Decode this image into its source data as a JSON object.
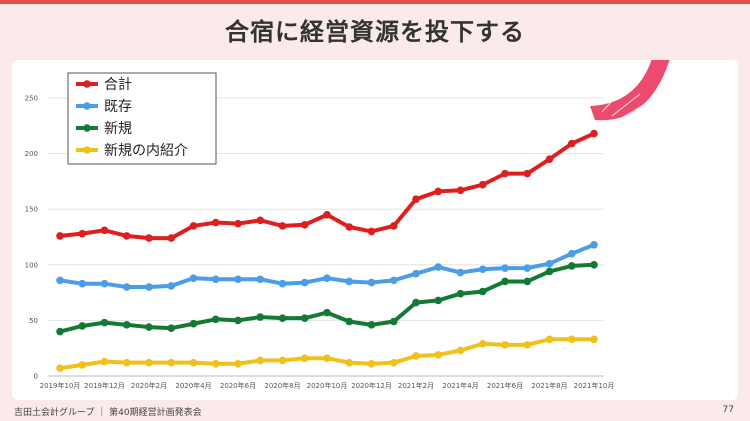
{
  "slide": {
    "title": "合宿に経営資源を投下する",
    "footer_text": "吉田土会計グループ ｜ 第40期経営計画発表会",
    "page_number": "77"
  },
  "colors": {
    "top_bar": "#e05050",
    "arrow": "#ec4a6e",
    "background": "#fbeaea"
  },
  "chart_data": {
    "type": "line",
    "x": [
      "2019年10月",
      "2019年11月",
      "2019年12月",
      "2020年1月",
      "2020年2月",
      "2020年3月",
      "2020年4月",
      "2020年5月",
      "2020年6月",
      "2020年7月",
      "2020年8月",
      "2020年9月",
      "2020年10月",
      "2020年11月",
      "2020年12月",
      "2021年1月",
      "2021年2月",
      "2021年3月",
      "2021年4月",
      "2021年5月",
      "2021年6月",
      "2021年7月",
      "2021年8月",
      "2021年9月",
      "2021年10月"
    ],
    "x_tick_labels": [
      "2019年10月",
      "",
      "2019年12月",
      "",
      "2020年2月",
      "",
      "2020年4月",
      "",
      "2020年6月",
      "",
      "2020年8月",
      "",
      "2020年10月",
      "",
      "2020年12月",
      "",
      "2021年2月",
      "",
      "2021年4月",
      "",
      "2021年6月",
      "",
      "2021年8月",
      "",
      "2021年10月"
    ],
    "ylim": [
      0,
      250
    ],
    "y_ticks": [
      0,
      50,
      100,
      150,
      200,
      250
    ],
    "grid": true,
    "legend_position": "top-left",
    "series": [
      {
        "name": "合計",
        "color": "#dd1f1f",
        "values": [
          126,
          128,
          131,
          126,
          124,
          124,
          135,
          138,
          137,
          140,
          135,
          136,
          145,
          134,
          130,
          135,
          159,
          166,
          167,
          172,
          182,
          182,
          195,
          209,
          218
        ]
      },
      {
        "name": "既存",
        "color": "#4a9de6",
        "values": [
          86,
          83,
          83,
          80,
          80,
          81,
          88,
          87,
          87,
          87,
          83,
          84,
          88,
          85,
          84,
          86,
          92,
          98,
          93,
          96,
          97,
          97,
          101,
          110,
          118
        ]
      },
      {
        "name": "新規",
        "color": "#137a33",
        "values": [
          40,
          45,
          48,
          46,
          44,
          43,
          47,
          51,
          50,
          53,
          52,
          52,
          57,
          49,
          46,
          49,
          66,
          68,
          74,
          76,
          85,
          85,
          94,
          99,
          100
        ]
      },
      {
        "name": "新規の内紹介",
        "color": "#f2c01a",
        "values": [
          7,
          10,
          13,
          12,
          12,
          12,
          12,
          11,
          11,
          14,
          14,
          16,
          16,
          12,
          11,
          12,
          18,
          19,
          23,
          29,
          28,
          28,
          33,
          33,
          33
        ]
      }
    ]
  }
}
